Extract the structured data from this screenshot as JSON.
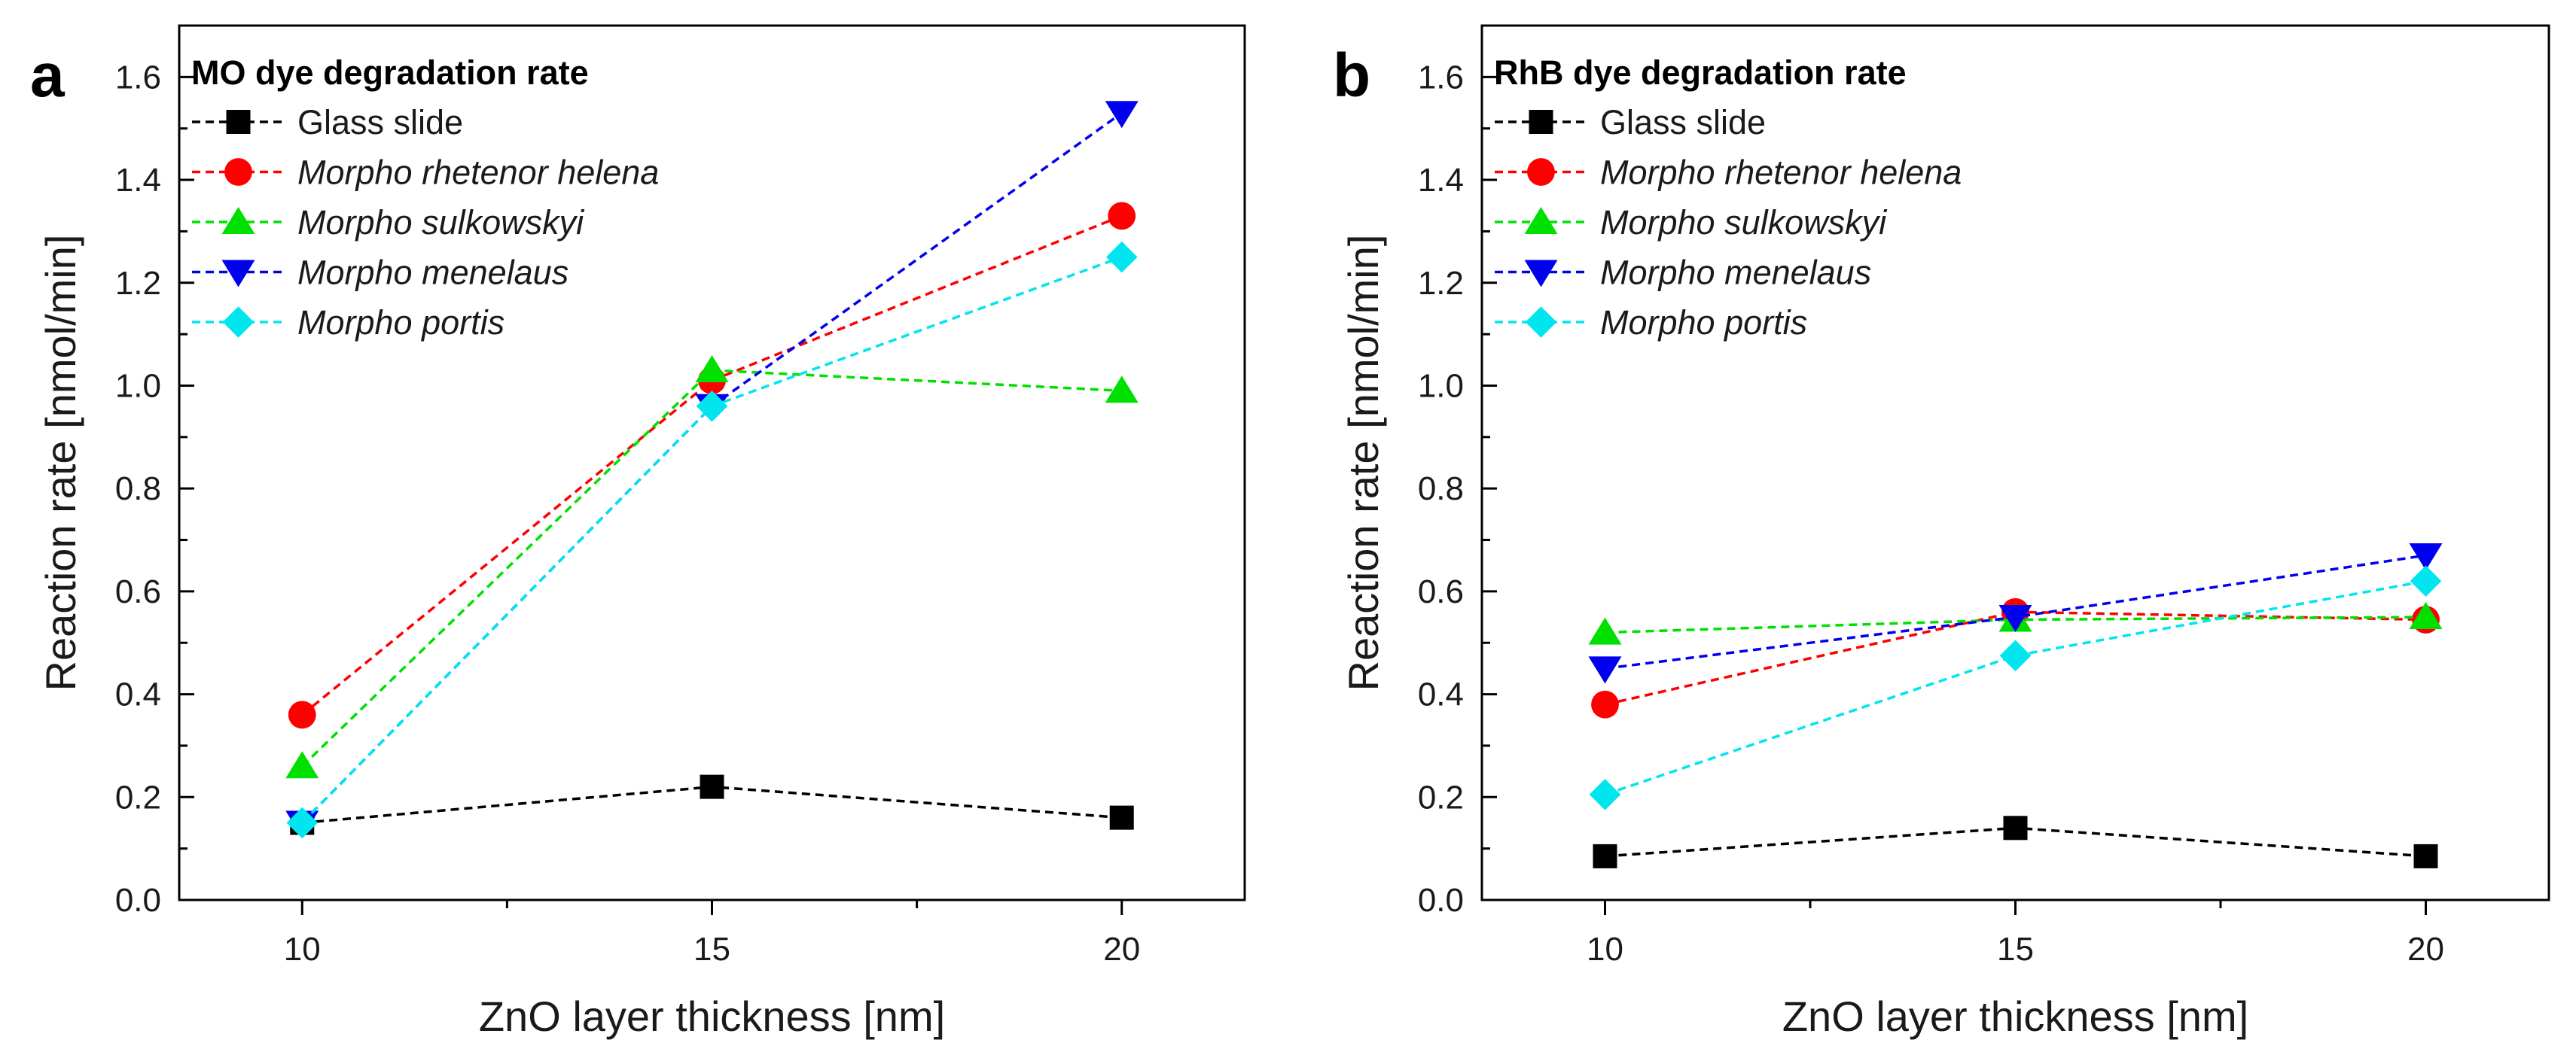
{
  "chart_data": [
    {
      "panel": "a",
      "type": "line",
      "title": "MO dye degradation rate",
      "xlabel": "ZnO layer thickness [nm]",
      "ylabel": "Reaction rate [nmol/min]",
      "x": [
        10,
        15,
        20
      ],
      "xticks": [
        "10",
        "15",
        "20"
      ],
      "yticks": [
        "0.0",
        "0.2",
        "0.4",
        "0.6",
        "0.8",
        "1.0",
        "1.2",
        "1.4",
        "1.6"
      ],
      "xlim": [
        8.5,
        21.5
      ],
      "ylim": [
        0,
        1.7
      ],
      "legend_position": "top-left",
      "series": [
        {
          "name": "Glass slide",
          "italic": false,
          "color": "#000000",
          "marker": "square",
          "values": [
            0.15,
            0.22,
            0.16
          ]
        },
        {
          "name": "Morpho rhetenor helena",
          "italic": true,
          "color": "#ff0000",
          "marker": "circle",
          "values": [
            0.36,
            1.01,
            1.33
          ]
        },
        {
          "name": "Morpho sulkowskyi",
          "italic": true,
          "color": "#00e000",
          "marker": "triangle-up",
          "values": [
            0.26,
            1.03,
            0.99
          ]
        },
        {
          "name": "Morpho menelaus",
          "italic": true,
          "color": "#0000ee",
          "marker": "triangle-down",
          "values": [
            0.15,
            0.96,
            1.53
          ]
        },
        {
          "name": "Morpho portis",
          "italic": true,
          "color": "#00e5ee",
          "marker": "diamond",
          "values": [
            0.15,
            0.96,
            1.25
          ]
        }
      ]
    },
    {
      "panel": "b",
      "type": "line",
      "title": "RhB dye degradation rate",
      "xlabel": "ZnO layer thickness [nm]",
      "ylabel": "Reaction rate [nmol/min]",
      "x": [
        10,
        15,
        20
      ],
      "xticks": [
        "10",
        "15",
        "20"
      ],
      "yticks": [
        "0.0",
        "0.2",
        "0.4",
        "0.6",
        "0.8",
        "1.0",
        "1.2",
        "1.4",
        "1.6"
      ],
      "xlim": [
        8.5,
        21.5
      ],
      "ylim": [
        0,
        1.7
      ],
      "legend_position": "top-left",
      "series": [
        {
          "name": "Glass slide",
          "italic": false,
          "color": "#000000",
          "marker": "square",
          "values": [
            0.085,
            0.14,
            0.085
          ]
        },
        {
          "name": "Morpho rhetenor helena",
          "italic": true,
          "color": "#ff0000",
          "marker": "circle",
          "values": [
            0.38,
            0.56,
            0.545
          ]
        },
        {
          "name": "Morpho sulkowskyi",
          "italic": true,
          "color": "#00e000",
          "marker": "triangle-up",
          "values": [
            0.52,
            0.545,
            0.55
          ]
        },
        {
          "name": "Morpho menelaus",
          "italic": true,
          "color": "#0000ee",
          "marker": "triangle-down",
          "values": [
            0.45,
            0.55,
            0.67
          ]
        },
        {
          "name": "Morpho portis",
          "italic": true,
          "color": "#00e5ee",
          "marker": "diamond",
          "values": [
            0.205,
            0.475,
            0.62
          ]
        }
      ]
    }
  ]
}
